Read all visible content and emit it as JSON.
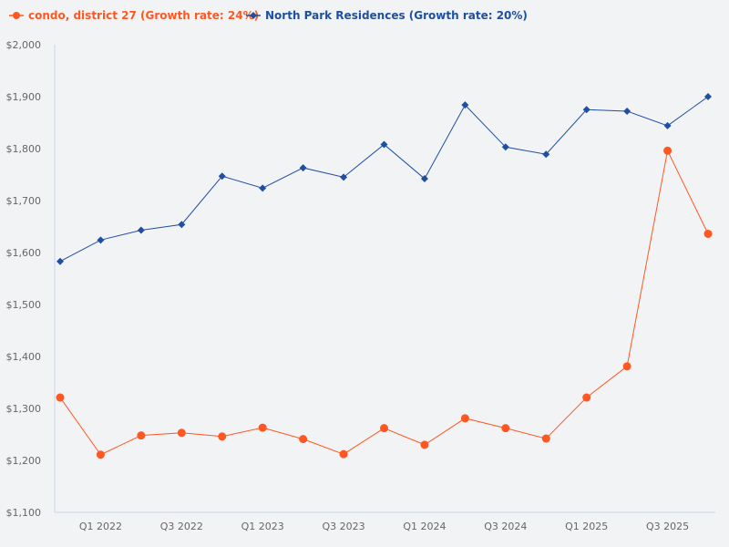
{
  "chart_data": {
    "type": "line",
    "categories": [
      "Q4 2021",
      "Q1 2022",
      "Q2 2022",
      "Q3 2022",
      "Q4 2022",
      "Q1 2023",
      "Q2 2023",
      "Q3 2023",
      "Q4 2023",
      "Q1 2024",
      "Q2 2024",
      "Q3 2024",
      "Q4 2024",
      "Q1 2025",
      "Q2 2025",
      "Q3 2025",
      "Q4 2025"
    ],
    "x_tick_labels": [
      "Q1 2022",
      "Q3 2022",
      "Q1 2023",
      "Q3 2023",
      "Q1 2024",
      "Q3 2024",
      "Q1 2025",
      "Q3 2025"
    ],
    "y_tick_labels": [
      "$1,100",
      "$1,200",
      "$1,300",
      "$1,400",
      "$1,500",
      "$1,600",
      "$1,700",
      "$1,800",
      "$1,900",
      "$2,000"
    ],
    "ylim": [
      1100,
      2000
    ],
    "legend_position": "top-left",
    "grid": false,
    "series": [
      {
        "name": "condo, district 27 (Growth rate: 24%)",
        "color": "#ff5722",
        "marker": "circle",
        "values": [
          1321,
          1211,
          1248,
          1253,
          1246,
          1263,
          1241,
          1212,
          1262,
          1230,
          1281,
          1262,
          1242,
          1321,
          1381,
          1796,
          1636
        ]
      },
      {
        "name": "North Park Residences (Growth rate: 20%)",
        "color": "#1e4fa0",
        "marker": "diamond",
        "values": [
          1583,
          1624,
          1643,
          1654,
          1747,
          1724,
          1763,
          1745,
          1808,
          1742,
          1884,
          1803,
          1789,
          1875,
          1872,
          1844,
          1900
        ]
      }
    ]
  }
}
